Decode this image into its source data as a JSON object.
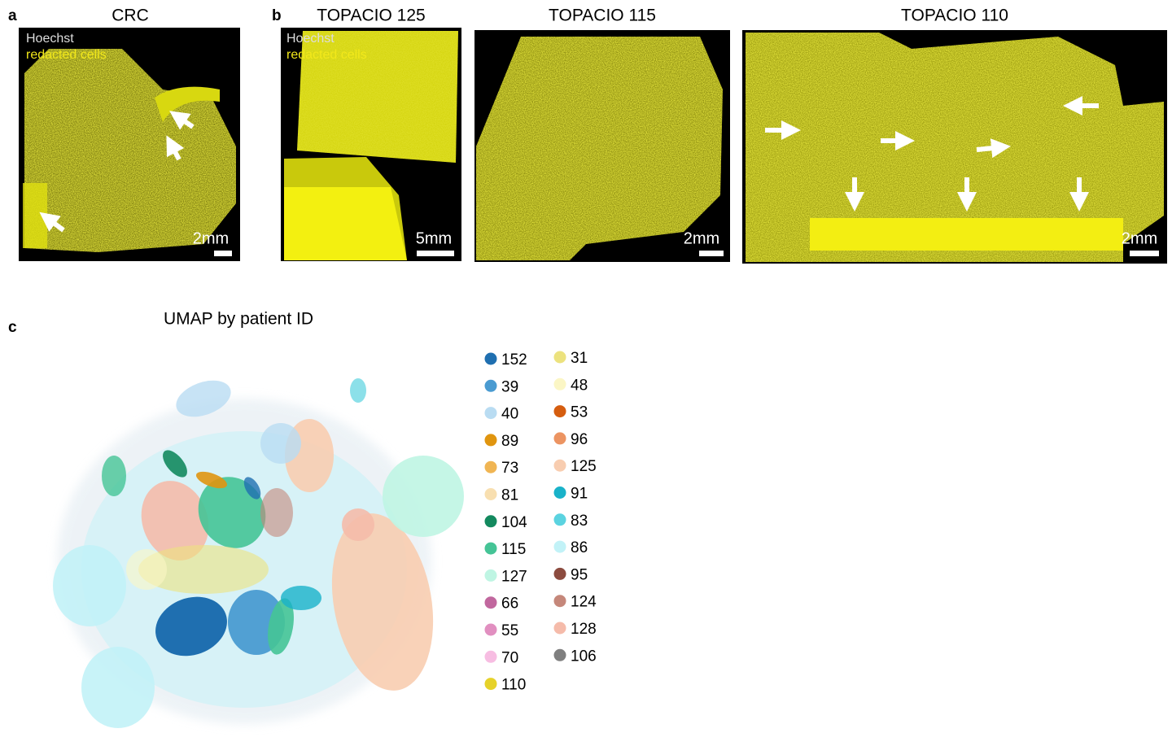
{
  "panels": [
    {
      "letter": "a",
      "title": "CRC",
      "labels": [
        "Hoechst",
        "redacted cells"
      ],
      "scale": "2mm"
    },
    {
      "letter": "b",
      "title": "TOPACIO 125",
      "labels": [
        "Hoechst",
        "redacted cells"
      ],
      "scale": "5mm"
    },
    {
      "title": "TOPACIO 115",
      "scale": "2mm"
    },
    {
      "title": "TOPACIO 110",
      "scale": "2mm"
    }
  ],
  "umap": {
    "letter": "c",
    "title": "UMAP by patient ID",
    "legend": [
      {
        "label": "152",
        "color": "#1f6fb0"
      },
      {
        "label": "39",
        "color": "#4a9bd1"
      },
      {
        "label": "40",
        "color": "#b9dcf2"
      },
      {
        "label": "89",
        "color": "#e0950f"
      },
      {
        "label": "73",
        "color": "#f0b553"
      },
      {
        "label": "81",
        "color": "#f8dfb0"
      },
      {
        "label": "104",
        "color": "#13895e"
      },
      {
        "label": "115",
        "color": "#45c496"
      },
      {
        "label": "127",
        "color": "#bff5e3"
      },
      {
        "label": "66",
        "color": "#c1679e"
      },
      {
        "label": "55",
        "color": "#e18fc0"
      },
      {
        "label": "70",
        "color": "#f7bde2"
      },
      {
        "label": "110",
        "color": "#e6d22a"
      },
      {
        "label": "31",
        "color": "#ece27e"
      },
      {
        "label": "48",
        "color": "#fbf6c5"
      },
      {
        "label": "53",
        "color": "#d55d0f"
      },
      {
        "label": "96",
        "color": "#ec9462"
      },
      {
        "label": "125",
        "color": "#f8cdb0"
      },
      {
        "label": "91",
        "color": "#19b2c9"
      },
      {
        "label": "83",
        "color": "#5bd3e0"
      },
      {
        "label": "86",
        "color": "#c2f2f7"
      },
      {
        "label": "95",
        "color": "#8c4b3f"
      },
      {
        "label": "124",
        "color": "#c5877a"
      },
      {
        "label": "128",
        "color": "#f5bbaa"
      },
      {
        "label": "106",
        "color": "#7f7f7f"
      }
    ]
  }
}
